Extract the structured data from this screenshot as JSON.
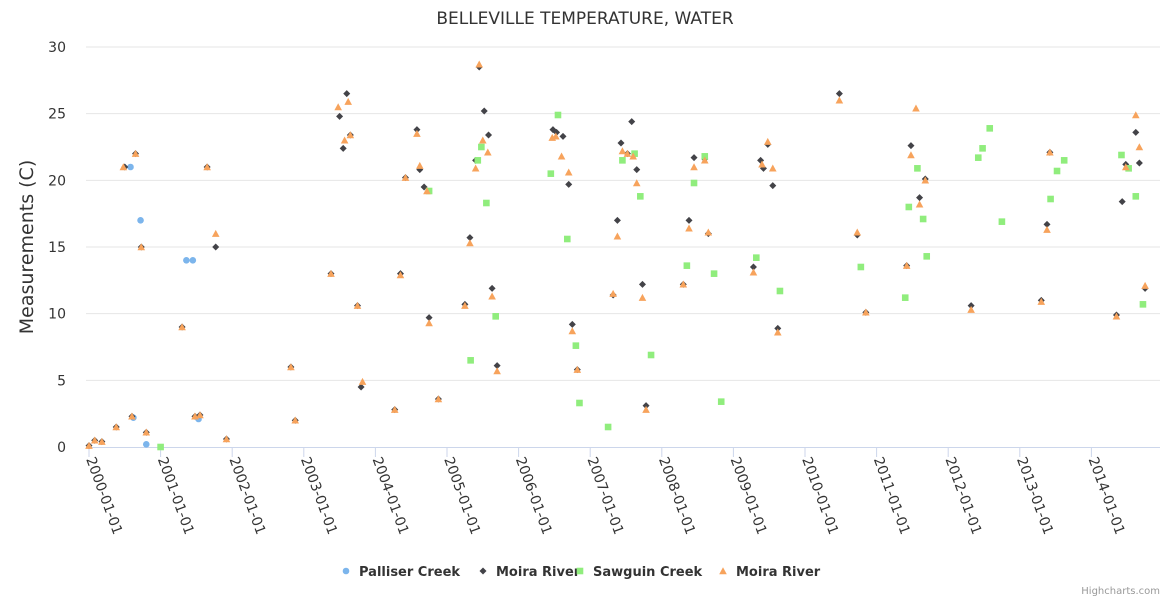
{
  "chart_data": {
    "type": "scatter",
    "title": "BELLEVILLE TEMPERATURE, WATER",
    "xlabel": "",
    "ylabel": "Measurements (C)",
    "ylim": [
      0,
      30
    ],
    "yticks": [
      0,
      5,
      10,
      15,
      20,
      25,
      30
    ],
    "xlim": [
      1999.95,
      2014.97
    ],
    "xticks": [
      {
        "value": 2000,
        "label": "2000-01-01"
      },
      {
        "value": 2001,
        "label": "2001-01-01"
      },
      {
        "value": 2002,
        "label": "2002-01-01"
      },
      {
        "value": 2003,
        "label": "2003-01-01"
      },
      {
        "value": 2004,
        "label": "2004-01-01"
      },
      {
        "value": 2005,
        "label": "2005-01-01"
      },
      {
        "value": 2006,
        "label": "2006-01-01"
      },
      {
        "value": 2007,
        "label": "2007-01-01"
      },
      {
        "value": 2008,
        "label": "2008-01-01"
      },
      {
        "value": 2009,
        "label": "2009-01-01"
      },
      {
        "value": 2010,
        "label": "2010-01-01"
      },
      {
        "value": 2011,
        "label": "2011-01-01"
      },
      {
        "value": 2012,
        "label": "2012-01-01"
      },
      {
        "value": 2013,
        "label": "2013-01-01"
      },
      {
        "value": 2014,
        "label": "2014-01-01"
      }
    ],
    "grid": true,
    "legend_position": "bottom-center",
    "credits": "Highcharts.com",
    "series": [
      {
        "name": "Palliser Creek",
        "marker": "circle",
        "color": "#7cb5ec",
        "points": [
          [
            2000.58,
            21.0
          ],
          [
            2000.62,
            2.2
          ],
          [
            2000.72,
            17.0
          ],
          [
            2000.8,
            0.2
          ],
          [
            2001.36,
            14.0
          ],
          [
            2001.45,
            14.0
          ],
          [
            2001.53,
            2.1
          ]
        ]
      },
      {
        "name": "Moira River",
        "marker": "diamond",
        "color": "#434348",
        "points": [
          [
            2000.0,
            0.1
          ],
          [
            2000.08,
            0.5
          ],
          [
            2000.18,
            0.4
          ],
          [
            2000.38,
            1.5
          ],
          [
            2000.5,
            21.0
          ],
          [
            2000.6,
            2.3
          ],
          [
            2000.65,
            22.0
          ],
          [
            2000.73,
            15.0
          ],
          [
            2000.8,
            1.1
          ],
          [
            2001.3,
            9.0
          ],
          [
            2001.48,
            2.3
          ],
          [
            2001.55,
            2.4
          ],
          [
            2001.65,
            21.0
          ],
          [
            2001.77,
            15.0
          ],
          [
            2001.92,
            0.6
          ],
          [
            2002.82,
            6.0
          ],
          [
            2002.88,
            2.0
          ],
          [
            2003.38,
            13.0
          ],
          [
            2003.5,
            24.8
          ],
          [
            2003.55,
            22.4
          ],
          [
            2003.6,
            26.5
          ],
          [
            2003.65,
            23.4
          ],
          [
            2003.75,
            10.6
          ],
          [
            2003.8,
            4.5
          ],
          [
            2004.27,
            2.8
          ],
          [
            2004.35,
            13.0
          ],
          [
            2004.42,
            20.2
          ],
          [
            2004.58,
            23.8
          ],
          [
            2004.62,
            20.8
          ],
          [
            2004.68,
            19.5
          ],
          [
            2004.75,
            9.7
          ],
          [
            2004.88,
            3.6
          ],
          [
            2005.25,
            10.7
          ],
          [
            2005.32,
            15.7
          ],
          [
            2005.4,
            21.5
          ],
          [
            2005.45,
            28.5
          ],
          [
            2005.52,
            25.2
          ],
          [
            2005.58,
            23.4
          ],
          [
            2005.63,
            11.9
          ],
          [
            2005.7,
            6.1
          ],
          [
            2006.48,
            23.8
          ],
          [
            2006.53,
            23.6
          ],
          [
            2006.62,
            23.3
          ],
          [
            2006.7,
            19.7
          ],
          [
            2006.75,
            9.2
          ],
          [
            2006.82,
            5.8
          ],
          [
            2007.32,
            11.4
          ],
          [
            2007.38,
            17.0
          ],
          [
            2007.43,
            22.8
          ],
          [
            2007.52,
            22.0
          ],
          [
            2007.58,
            24.4
          ],
          [
            2007.65,
            20.8
          ],
          [
            2007.73,
            12.2
          ],
          [
            2007.78,
            3.1
          ],
          [
            2008.3,
            12.2
          ],
          [
            2008.38,
            17.0
          ],
          [
            2008.45,
            21.7
          ],
          [
            2008.6,
            21.6
          ],
          [
            2008.65,
            16.0
          ],
          [
            2009.28,
            13.5
          ],
          [
            2009.38,
            21.5
          ],
          [
            2009.42,
            20.9
          ],
          [
            2009.48,
            22.7
          ],
          [
            2009.55,
            19.6
          ],
          [
            2009.62,
            8.9
          ],
          [
            2010.48,
            26.5
          ],
          [
            2010.73,
            15.9
          ],
          [
            2010.85,
            10.1
          ],
          [
            2011.42,
            13.6
          ],
          [
            2011.48,
            22.6
          ],
          [
            2011.6,
            18.7
          ],
          [
            2011.68,
            20.1
          ],
          [
            2012.32,
            10.6
          ],
          [
            2013.3,
            11.0
          ],
          [
            2013.38,
            16.7
          ],
          [
            2013.42,
            22.1
          ],
          [
            2014.35,
            9.9
          ],
          [
            2014.43,
            18.4
          ],
          [
            2014.48,
            21.2
          ],
          [
            2014.62,
            23.6
          ],
          [
            2014.67,
            21.3
          ],
          [
            2014.75,
            11.9
          ]
        ]
      },
      {
        "name": "Sawguin Creek",
        "marker": "square",
        "color": "#90ed7d",
        "points": [
          [
            2001.0,
            0.0
          ],
          [
            2004.75,
            19.2
          ],
          [
            2005.33,
            6.5
          ],
          [
            2005.43,
            21.5
          ],
          [
            2005.48,
            22.5
          ],
          [
            2005.55,
            18.3
          ],
          [
            2005.68,
            9.8
          ],
          [
            2006.45,
            20.5
          ],
          [
            2006.55,
            24.9
          ],
          [
            2006.68,
            15.6
          ],
          [
            2006.8,
            7.6
          ],
          [
            2006.85,
            3.3
          ],
          [
            2007.25,
            1.5
          ],
          [
            2007.45,
            21.5
          ],
          [
            2007.62,
            22.0
          ],
          [
            2007.7,
            18.8
          ],
          [
            2007.85,
            6.9
          ],
          [
            2008.35,
            13.6
          ],
          [
            2008.45,
            19.8
          ],
          [
            2008.6,
            21.8
          ],
          [
            2008.73,
            13.0
          ],
          [
            2008.83,
            3.4
          ],
          [
            2009.32,
            14.2
          ],
          [
            2009.65,
            11.7
          ],
          [
            2010.78,
            13.5
          ],
          [
            2011.4,
            11.2
          ],
          [
            2011.45,
            18.0
          ],
          [
            2011.57,
            20.9
          ],
          [
            2011.65,
            17.1
          ],
          [
            2011.7,
            14.3
          ],
          [
            2012.42,
            21.7
          ],
          [
            2012.48,
            22.4
          ],
          [
            2012.58,
            23.9
          ],
          [
            2012.75,
            16.9
          ],
          [
            2013.43,
            18.6
          ],
          [
            2013.52,
            20.7
          ],
          [
            2013.62,
            21.5
          ],
          [
            2014.42,
            21.9
          ],
          [
            2014.52,
            20.9
          ],
          [
            2014.62,
            18.8
          ],
          [
            2014.72,
            10.7
          ]
        ]
      },
      {
        "name": "Moira River",
        "marker": "triangle",
        "color": "#f7a35c",
        "points": [
          [
            2000.0,
            0.1
          ],
          [
            2000.08,
            0.5
          ],
          [
            2000.18,
            0.4
          ],
          [
            2000.38,
            1.5
          ],
          [
            2000.48,
            21.0
          ],
          [
            2000.6,
            2.3
          ],
          [
            2000.65,
            22.0
          ],
          [
            2000.73,
            15.0
          ],
          [
            2000.8,
            1.1
          ],
          [
            2001.3,
            9.0
          ],
          [
            2001.48,
            2.3
          ],
          [
            2001.55,
            2.4
          ],
          [
            2001.65,
            21.0
          ],
          [
            2001.77,
            16.0
          ],
          [
            2001.92,
            0.6
          ],
          [
            2002.82,
            6.0
          ],
          [
            2002.88,
            2.0
          ],
          [
            2003.38,
            13.0
          ],
          [
            2003.48,
            25.5
          ],
          [
            2003.57,
            23.0
          ],
          [
            2003.62,
            25.9
          ],
          [
            2003.65,
            23.4
          ],
          [
            2003.75,
            10.6
          ],
          [
            2003.82,
            4.9
          ],
          [
            2004.27,
            2.8
          ],
          [
            2004.35,
            12.9
          ],
          [
            2004.42,
            20.2
          ],
          [
            2004.58,
            23.5
          ],
          [
            2004.62,
            21.1
          ],
          [
            2004.72,
            19.2
          ],
          [
            2004.75,
            9.3
          ],
          [
            2004.88,
            3.6
          ],
          [
            2005.25,
            10.6
          ],
          [
            2005.32,
            15.3
          ],
          [
            2005.4,
            20.9
          ],
          [
            2005.45,
            28.7
          ],
          [
            2005.5,
            23.0
          ],
          [
            2005.57,
            22.1
          ],
          [
            2005.63,
            11.3
          ],
          [
            2005.7,
            5.7
          ],
          [
            2006.47,
            23.2
          ],
          [
            2006.52,
            23.3
          ],
          [
            2006.6,
            21.8
          ],
          [
            2006.7,
            20.6
          ],
          [
            2006.75,
            8.7
          ],
          [
            2006.82,
            5.8
          ],
          [
            2007.32,
            11.5
          ],
          [
            2007.38,
            15.8
          ],
          [
            2007.45,
            22.2
          ],
          [
            2007.52,
            22.0
          ],
          [
            2007.6,
            21.8
          ],
          [
            2007.65,
            19.8
          ],
          [
            2007.73,
            11.2
          ],
          [
            2007.78,
            2.8
          ],
          [
            2008.3,
            12.2
          ],
          [
            2008.38,
            16.4
          ],
          [
            2008.45,
            21.0
          ],
          [
            2008.6,
            21.5
          ],
          [
            2008.65,
            16.1
          ],
          [
            2009.28,
            13.1
          ],
          [
            2009.4,
            21.2
          ],
          [
            2009.48,
            22.9
          ],
          [
            2009.55,
            20.9
          ],
          [
            2009.62,
            8.6
          ],
          [
            2010.48,
            26.0
          ],
          [
            2010.73,
            16.1
          ],
          [
            2010.85,
            10.1
          ],
          [
            2011.42,
            13.6
          ],
          [
            2011.48,
            21.9
          ],
          [
            2011.55,
            25.4
          ],
          [
            2011.6,
            18.2
          ],
          [
            2011.68,
            20.0
          ],
          [
            2012.32,
            10.3
          ],
          [
            2013.3,
            10.9
          ],
          [
            2013.38,
            16.3
          ],
          [
            2013.42,
            22.1
          ],
          [
            2014.35,
            9.8
          ],
          [
            2014.48,
            21.0
          ],
          [
            2014.62,
            24.9
          ],
          [
            2014.67,
            22.5
          ],
          [
            2014.75,
            12.1
          ]
        ]
      }
    ]
  }
}
